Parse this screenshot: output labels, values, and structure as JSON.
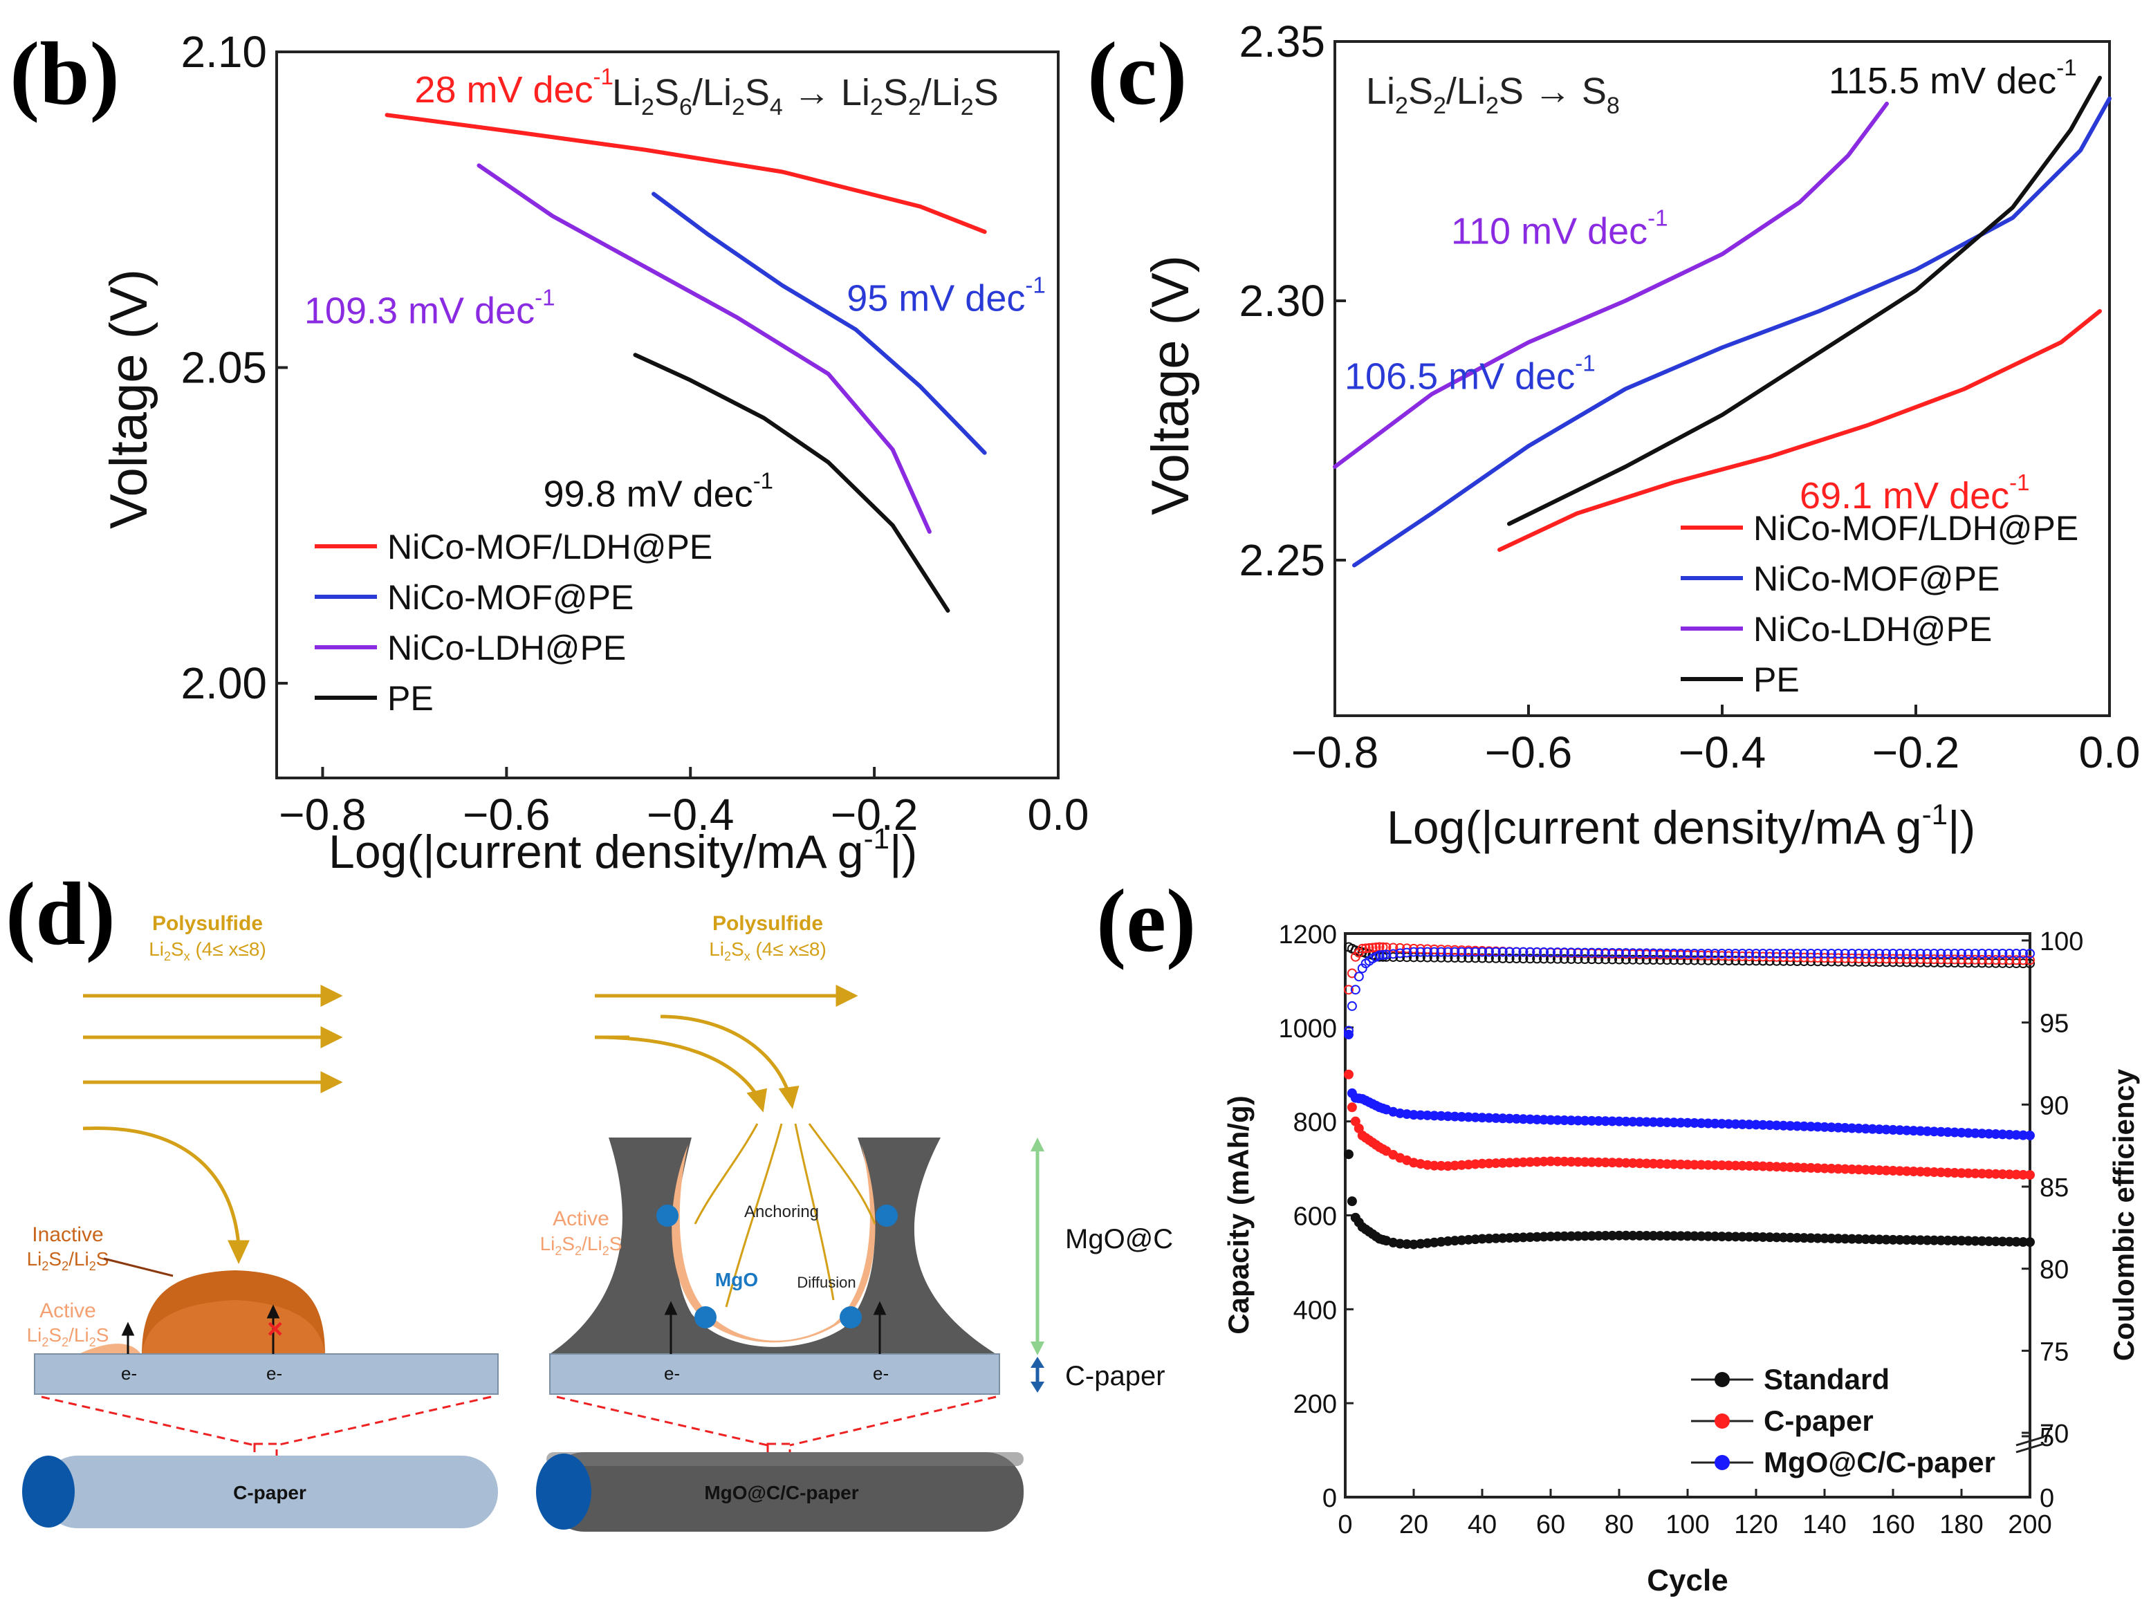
{
  "panels": {
    "b": "(b)",
    "c": "(c)",
    "d": "(d)",
    "e": "(e)"
  },
  "chart_data": [
    {
      "id": "b",
      "type": "line",
      "reaction": {
        "base": "Li",
        "parts": [
          "2",
          "S",
          "6",
          "/Li",
          "2",
          "S",
          "4",
          " → Li",
          "2",
          "S",
          "2",
          "/Li",
          "2",
          "S"
        ]
      },
      "reaction_text": "Li2S6/Li2S4 → Li2S2/Li2S",
      "xlabel": "Log(|current density/mA g",
      "xlabel_sup": "-1",
      "xlabel_end": "|)",
      "ylabel": "Voltage (V)",
      "xlim": [
        -0.85,
        0.0
      ],
      "ylim": [
        1.985,
        2.1
      ],
      "xticks": [
        "−0.8",
        "−0.6",
        "−0.4",
        "−0.2",
        "0.0"
      ],
      "xtick_values": [
        -0.8,
        -0.6,
        -0.4,
        -0.2,
        0.0
      ],
      "yticks": [
        "2.00",
        "2.05",
        "2.10"
      ],
      "ytick_values": [
        2.0,
        2.05,
        2.1
      ],
      "series": [
        {
          "name": "NiCo-MOF/LDH@PE",
          "color": "#ff2020",
          "x": [
            -0.73,
            -0.6,
            -0.45,
            -0.3,
            -0.15,
            -0.08
          ],
          "y": [
            2.09,
            2.0875,
            2.0845,
            2.081,
            2.0755,
            2.0715
          ]
        },
        {
          "name": "NiCo-MOF@PE",
          "color": "#2a3ad6",
          "x": [
            -0.44,
            -0.38,
            -0.3,
            -0.22,
            -0.15,
            -0.08
          ],
          "y": [
            2.0775,
            2.071,
            2.063,
            2.056,
            2.047,
            2.0365
          ]
        },
        {
          "name": "NiCo-LDH@PE",
          "color": "#8a2be2",
          "x": [
            -0.63,
            -0.55,
            -0.45,
            -0.35,
            -0.25,
            -0.18,
            -0.14
          ],
          "y": [
            2.082,
            2.074,
            2.066,
            2.058,
            2.049,
            2.037,
            2.024
          ]
        },
        {
          "name": "PE",
          "color": "#111111",
          "x": [
            -0.46,
            -0.4,
            -0.32,
            -0.25,
            -0.18,
            -0.12
          ],
          "y": [
            2.052,
            2.048,
            2.042,
            2.035,
            2.025,
            2.0115
          ]
        }
      ],
      "annotations": [
        {
          "text": "28 mV dec",
          "sup": "-1",
          "color": "#ff2020",
          "x": -0.7,
          "y": 2.092
        },
        {
          "text": "95 mV dec",
          "sup": "-1",
          "color": "#2a3ad6",
          "x": -0.23,
          "y": 2.059
        },
        {
          "text": "109.3 mV dec",
          "sup": "-1",
          "color": "#8a2be2",
          "x": -0.82,
          "y": 2.057
        },
        {
          "text": "99.8 mV dec",
          "sup": "-1",
          "color": "#111111",
          "x": -0.56,
          "y": 2.028
        }
      ],
      "legend": [
        "NiCo-MOF/LDH@PE",
        "NiCo-MOF@PE",
        "NiCo-LDH@PE",
        "PE"
      ]
    },
    {
      "id": "c",
      "type": "line",
      "reaction_text": "Li2S2/Li2S → S8",
      "reaction": {
        "parts": [
          "Li",
          "2",
          "S",
          "2",
          "/Li",
          "2",
          "S → S",
          "8"
        ]
      },
      "xlabel": "Log(|current density/mA g",
      "xlabel_sup": "-1",
      "xlabel_end": "|)",
      "ylabel": "Voltage (V)",
      "xlim": [
        -0.8,
        0.0
      ],
      "ylim": [
        2.22,
        2.35
      ],
      "xticks": [
        "−0.8",
        "−0.6",
        "−0.4",
        "−0.2",
        "0.0"
      ],
      "xtick_values": [
        -0.8,
        -0.6,
        -0.4,
        -0.2,
        0.0
      ],
      "yticks": [
        "2.25",
        "2.30",
        "2.35"
      ],
      "ytick_values": [
        2.25,
        2.3,
        2.35
      ],
      "series": [
        {
          "name": "NiCo-MOF/LDH@PE",
          "color": "#ff2020",
          "x": [
            -0.63,
            -0.55,
            -0.45,
            -0.35,
            -0.25,
            -0.15,
            -0.05,
            -0.01
          ],
          "y": [
            2.252,
            2.259,
            2.265,
            2.27,
            2.276,
            2.283,
            2.292,
            2.298
          ]
        },
        {
          "name": "NiCo-MOF@PE",
          "color": "#2a3ad6",
          "x": [
            -0.78,
            -0.7,
            -0.6,
            -0.5,
            -0.4,
            -0.3,
            -0.2,
            -0.1,
            -0.03,
            0.0
          ],
          "y": [
            2.249,
            2.259,
            2.272,
            2.283,
            2.291,
            2.298,
            2.306,
            2.316,
            2.329,
            2.339
          ]
        },
        {
          "name": "NiCo-LDH@PE",
          "color": "#8a2be2",
          "x": [
            -0.8,
            -0.7,
            -0.6,
            -0.5,
            -0.4,
            -0.32,
            -0.27,
            -0.23
          ],
          "y": [
            2.268,
            2.282,
            2.292,
            2.3,
            2.309,
            2.319,
            2.328,
            2.338
          ]
        },
        {
          "name": "PE",
          "color": "#111111",
          "x": [
            -0.62,
            -0.5,
            -0.4,
            -0.3,
            -0.2,
            -0.1,
            -0.04,
            -0.01
          ],
          "y": [
            2.257,
            2.268,
            2.278,
            2.29,
            2.302,
            2.318,
            2.333,
            2.343
          ]
        }
      ],
      "annotations": [
        {
          "text": "115.5 mV dec",
          "sup": "-1",
          "color": "#111111",
          "x": -0.29,
          "y": 2.34
        },
        {
          "text": "110 mV dec",
          "sup": "-1",
          "color": "#8a2be2",
          "x": -0.68,
          "y": 2.311
        },
        {
          "text": "106.5 mV dec",
          "sup": "-1",
          "color": "#2a3ad6",
          "x": -0.79,
          "y": 2.283
        },
        {
          "text": "69.1 mV dec",
          "sup": "-1",
          "color": "#ff2020",
          "x": -0.32,
          "y": 2.26
        }
      ],
      "legend": [
        "NiCo-MOF/LDH@PE",
        "NiCo-MOF@PE",
        "NiCo-LDH@PE",
        "PE"
      ]
    },
    {
      "id": "e",
      "type": "scatter",
      "xlabel": "Cycle",
      "ylabel": "Capacity (mAh/g)",
      "ylabel_right": "Coulombic efficiency",
      "xlim": [
        0,
        200
      ],
      "ylim": [
        0,
        1200
      ],
      "xticks": [
        "0",
        "20",
        "40",
        "60",
        "80",
        "100",
        "120",
        "140",
        "160",
        "180",
        "200"
      ],
      "xtick_values": [
        0,
        20,
        40,
        60,
        80,
        100,
        120,
        140,
        160,
        180,
        200
      ],
      "yticks": [
        "0",
        "200",
        "400",
        "600",
        "800",
        "1000",
        "1200"
      ],
      "ytick_values": [
        0,
        200,
        400,
        600,
        800,
        1000,
        1200
      ],
      "right_ticks": [
        "0",
        "5",
        "70",
        "75",
        "80",
        "85",
        "90",
        "95",
        "100"
      ],
      "right_tick_values": [
        0,
        5,
        70,
        75,
        80,
        85,
        90,
        95,
        100
      ],
      "series": [
        {
          "name": "Standard",
          "color": "#111111",
          "x": [
            1,
            2,
            3,
            5,
            10,
            15,
            20,
            30,
            40,
            60,
            80,
            100,
            120,
            140,
            160,
            180,
            200
          ],
          "capacity": [
            730,
            630,
            595,
            575,
            550,
            540,
            538,
            545,
            550,
            555,
            557,
            556,
            554,
            551,
            548,
            546,
            543
          ],
          "ce_x": [
            1,
            3,
            10,
            50,
            100,
            150,
            200
          ],
          "ce": [
            99.6,
            99.4,
            99.0,
            98.9,
            98.8,
            98.7,
            98.6
          ]
        },
        {
          "name": "C-paper",
          "color": "#ff2020",
          "x": [
            1,
            2,
            3,
            5,
            10,
            15,
            20,
            25,
            30,
            40,
            60,
            80,
            100,
            120,
            140,
            160,
            180,
            200
          ],
          "capacity": [
            900,
            830,
            800,
            770,
            745,
            725,
            712,
            706,
            705,
            710,
            715,
            712,
            708,
            705,
            700,
            695,
            690,
            686
          ],
          "ce_x": [
            1,
            3,
            5,
            10,
            20,
            50,
            100,
            150,
            200
          ],
          "ce": [
            97.0,
            99.0,
            99.5,
            99.6,
            99.5,
            99.3,
            99.1,
            98.9,
            98.8
          ]
        },
        {
          "name": "MgO@C/C-paper",
          "color": "#1a1aff",
          "x": [
            1,
            2,
            3,
            5,
            10,
            15,
            20,
            40,
            60,
            80,
            100,
            120,
            140,
            160,
            180,
            200
          ],
          "capacity": [
            985,
            860,
            850,
            848,
            830,
            818,
            814,
            808,
            803,
            800,
            797,
            793,
            788,
            782,
            776,
            770
          ],
          "ce_x": [
            1,
            2,
            3,
            4,
            5,
            6,
            8,
            10,
            15,
            20,
            50,
            100,
            150,
            200
          ],
          "ce": [
            94.5,
            96.0,
            97.0,
            97.8,
            98.3,
            98.6,
            98.9,
            99.1,
            99.2,
            99.3,
            99.3,
            99.2,
            99.2,
            99.2
          ]
        }
      ],
      "legend": [
        "Standard",
        "C-paper",
        "MgO@C/C-paper"
      ]
    }
  ],
  "diagram_d": {
    "left": {
      "title": "Polysulfide",
      "formula": "Li2Sx (4≤ x≤8)",
      "inactive_label": [
        "Inactive",
        "Li2S2/Li2S"
      ],
      "active_label": [
        "Active",
        "Li2S2/Li2S"
      ],
      "electrons": [
        "e-",
        "e-"
      ],
      "cylinder_label": "C-paper"
    },
    "right": {
      "title": "Polysulfide",
      "formula": "Li2Sx (4≤ x≤8)",
      "active_label": [
        "Active",
        "Li2S2/Li2S"
      ],
      "anchoring": "Anchoring",
      "mgo": "MgO",
      "diffusion": "Diffusion",
      "electrons": [
        "e-",
        "e-"
      ],
      "cylinder_label": "MgO@C/C-paper",
      "mgoc_label": "MgO@C",
      "cpaper_label": "C-paper"
    },
    "colors": {
      "arrow": "#d4a017",
      "inactive": "#c8651b",
      "active": "#f4b183",
      "paper": "#a9bed4",
      "mgoc": "#595959",
      "cylinder_end": "#0b56a6",
      "dashed": "#ee2222",
      "green": "#8fd18f",
      "blue_arrow": "#1f5fa8",
      "mgo_dot": "#1a78c2"
    }
  }
}
